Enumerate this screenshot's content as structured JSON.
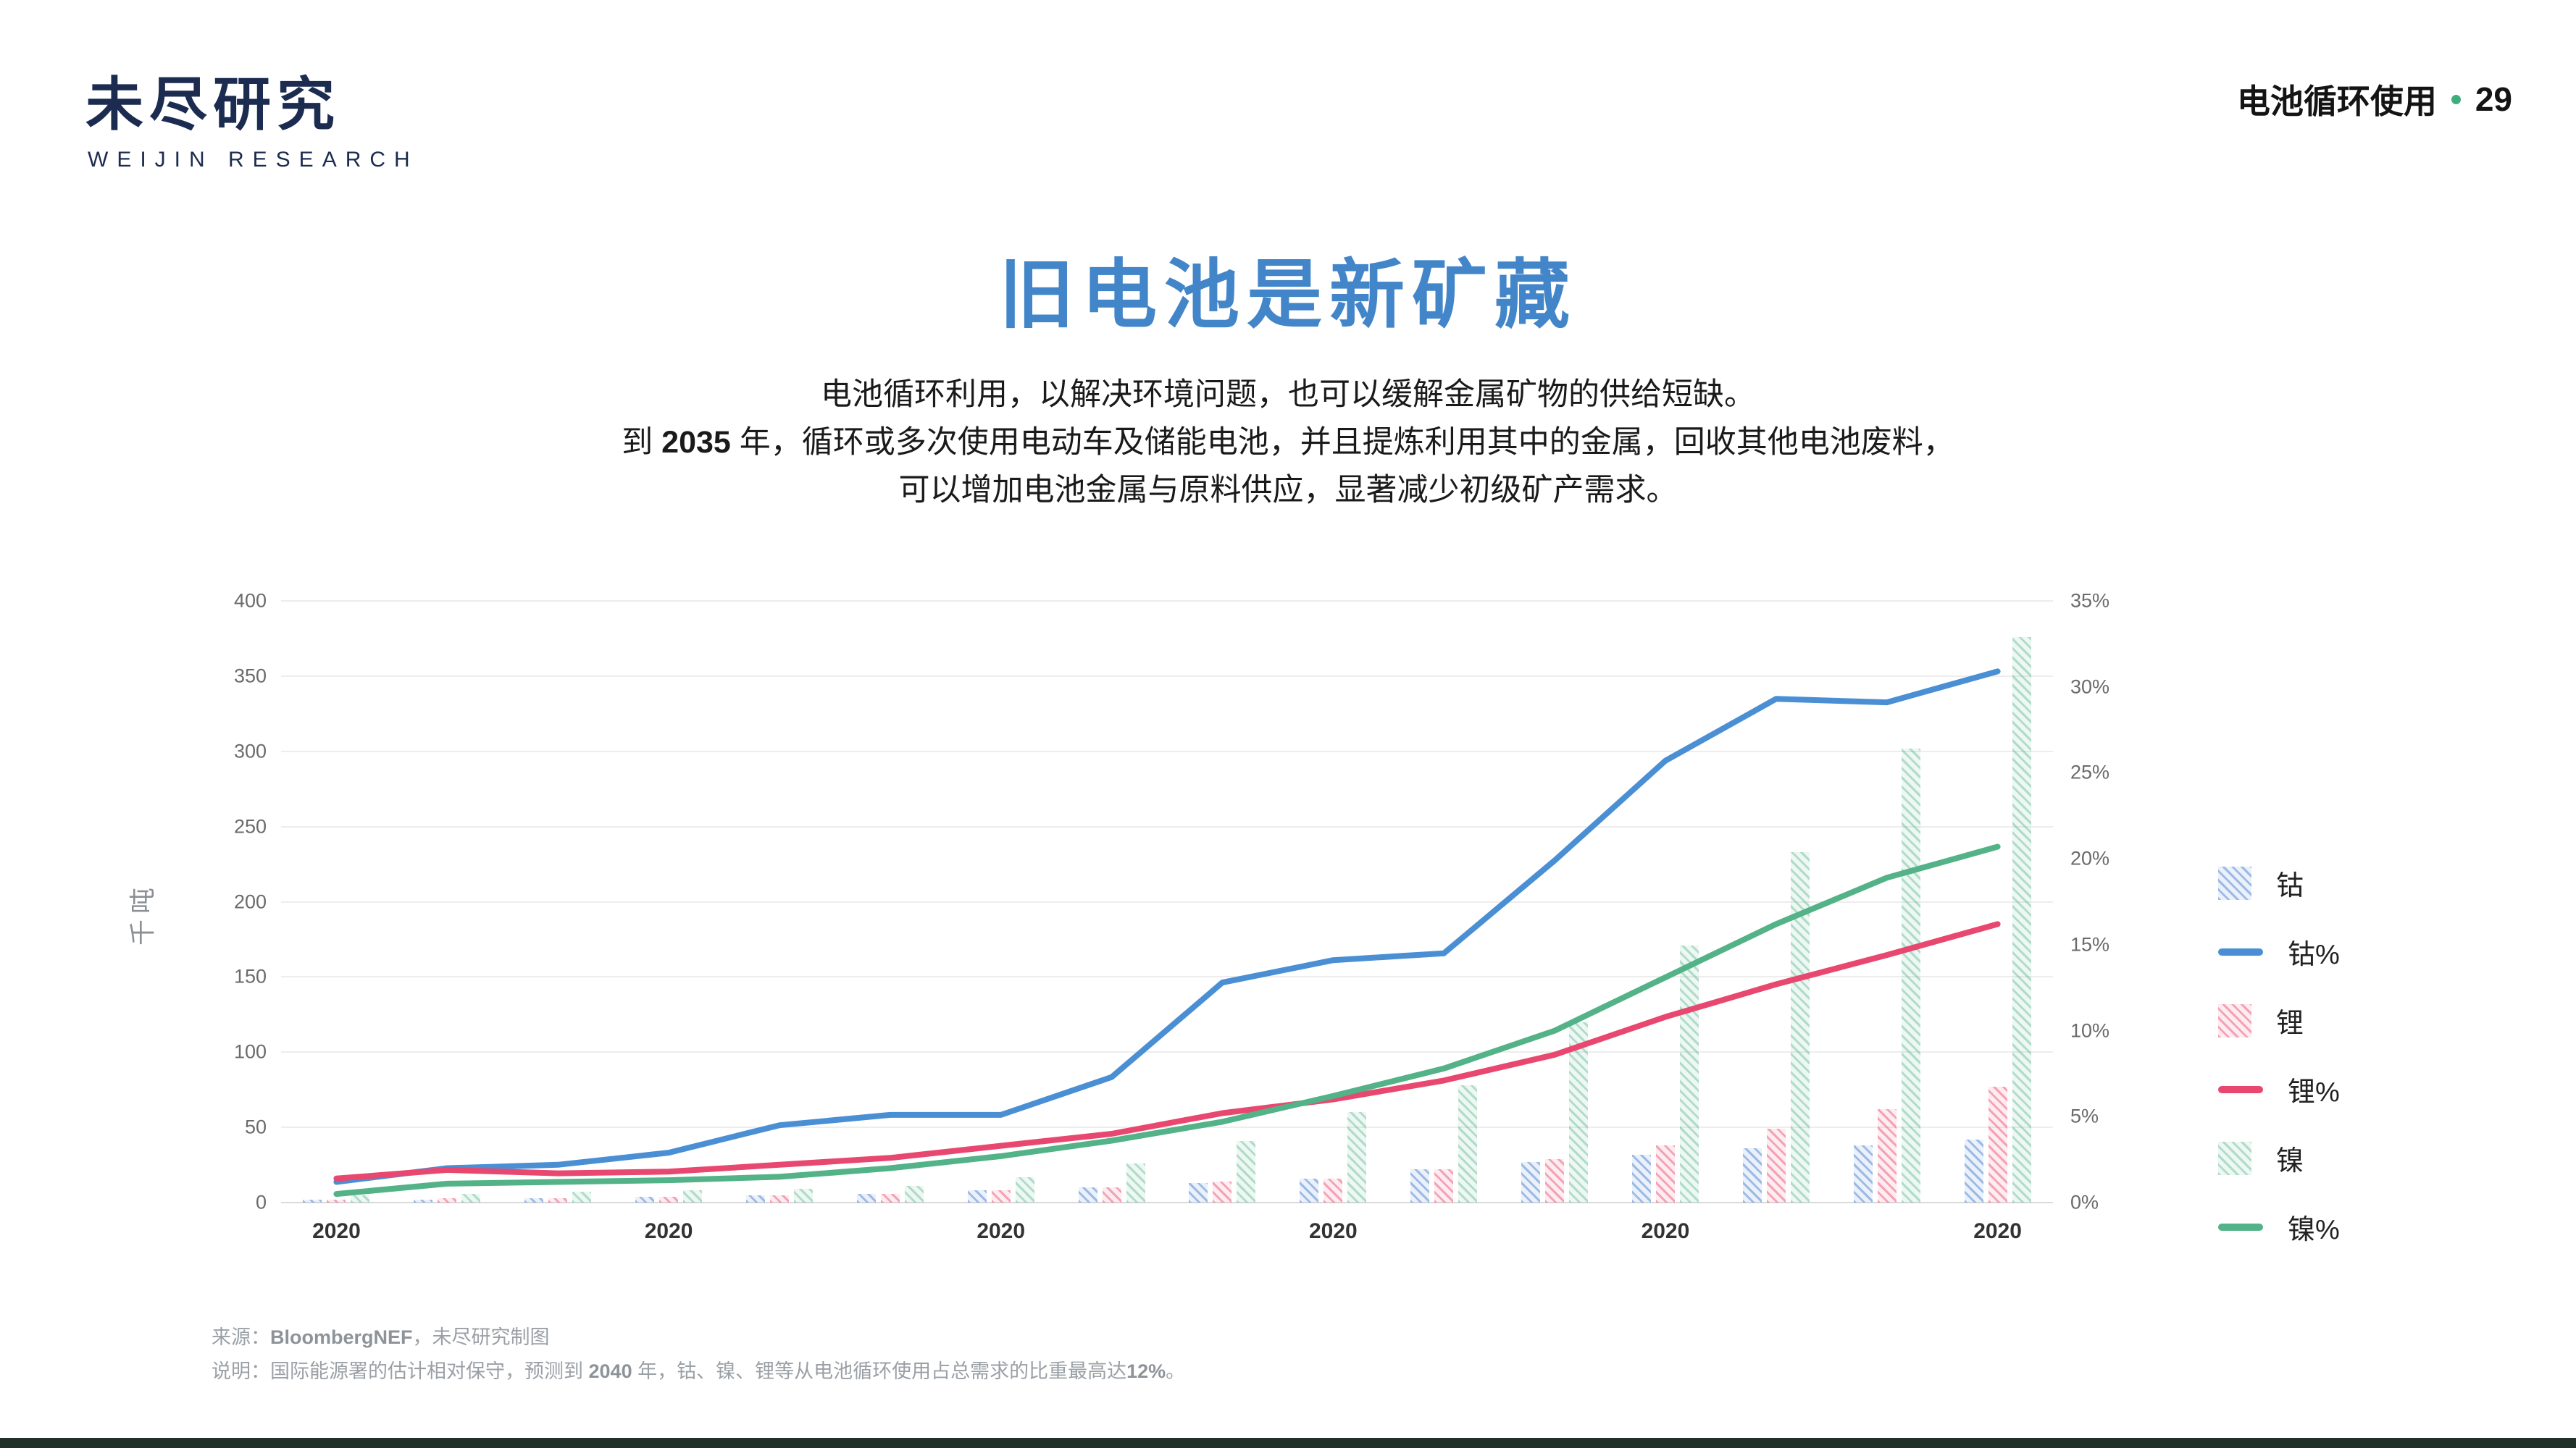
{
  "page": {
    "bg": "#ffffff",
    "bottom_bar_color": "#22302a"
  },
  "header": {
    "logo_cn": "未尽研究",
    "logo_en": "WEIJIN RESEARCH",
    "section_label": "电池循环使用",
    "page_number": "29",
    "accent_green": "#3fae7a",
    "logo_color": "#1c2b50"
  },
  "title": {
    "text": "旧电池是新矿藏",
    "color": "#4285c8"
  },
  "subtitle": {
    "line1": "电池循环利用，以解决环境问题，也可以缓解金属矿物的供给短缺。",
    "line2_pre": "到 ",
    "line2_bold": "2035",
    "line2_post": " 年，循环或多次使用电动车及储能电池，并且提炼利用其中的金属，回收其他电池废料，",
    "line3": "可以增加电池金属与原料供应，显著减少初级矿产需求。"
  },
  "chart_data": {
    "type": "combo-bar-line",
    "title": "",
    "categories_count": 16,
    "x_labels": [
      "2020",
      "2020",
      "2020",
      "2020",
      "2020",
      "2020"
    ],
    "x_label_positions": [
      0,
      3,
      6,
      9,
      12,
      15
    ],
    "left_axis": {
      "label": "千吨",
      "min": 0,
      "max": 400,
      "step": 50
    },
    "right_axis": {
      "min": 0,
      "max": 35,
      "step": 5,
      "suffix": "%"
    },
    "grid": "horizontal",
    "legend_position": "right",
    "bar_series": [
      {
        "key": "cobalt",
        "name": "钴",
        "color": "#5b8cd3",
        "values": [
          2,
          2,
          3,
          4,
          5,
          6,
          8,
          10,
          13,
          16,
          22,
          27,
          32,
          36,
          38,
          42
        ]
      },
      {
        "key": "lithium",
        "name": "锂",
        "color": "#e8486f",
        "values": [
          2,
          3,
          3,
          4,
          5,
          6,
          8,
          10,
          14,
          16,
          22,
          29,
          38,
          49,
          62,
          77
        ]
      },
      {
        "key": "nickel",
        "name": "镍",
        "color": "#53b287",
        "values": [
          5,
          6,
          7,
          8,
          9,
          11,
          17,
          26,
          41,
          60,
          78,
          120,
          171,
          233,
          302,
          376
        ]
      }
    ],
    "line_series": [
      {
        "key": "cobalt-pct",
        "name": "钴%",
        "color": "#4a8fd4",
        "values": [
          1.2,
          2.0,
          2.2,
          2.9,
          4.5,
          5.1,
          5.1,
          7.3,
          12.8,
          14.1,
          14.5,
          19.9,
          25.7,
          29.3,
          29.1,
          30.9
        ]
      },
      {
        "key": "lithium-pct",
        "name": "锂%",
        "color": "#e8486f",
        "values": [
          1.4,
          1.9,
          1.7,
          1.8,
          2.2,
          2.6,
          3.3,
          4.0,
          5.2,
          6.0,
          7.1,
          8.6,
          10.8,
          12.7,
          14.4,
          16.2
        ]
      },
      {
        "key": "nickel-pct",
        "name": "镍%",
        "color": "#53b287",
        "values": [
          0.5,
          1.1,
          1.2,
          1.3,
          1.5,
          2.0,
          2.7,
          3.6,
          4.7,
          6.2,
          7.8,
          10.0,
          13.1,
          16.2,
          18.9,
          20.7
        ]
      }
    ]
  },
  "legend": {
    "items": [
      {
        "key": "cobalt",
        "label": "钴",
        "type": "bar",
        "cls": "cobalt",
        "color": "#5b8cd3"
      },
      {
        "key": "cobalt-pct",
        "label": "钴%",
        "type": "line",
        "color": "#4a8fd4"
      },
      {
        "key": "lithium",
        "label": "锂",
        "type": "bar",
        "cls": "lithium",
        "color": "#e8486f"
      },
      {
        "key": "lithium-pct",
        "label": "锂%",
        "type": "line",
        "color": "#e8486f"
      },
      {
        "key": "nickel",
        "label": "镍",
        "type": "bar",
        "cls": "nickel",
        "color": "#53b287"
      },
      {
        "key": "nickel-pct",
        "label": "镍%",
        "type": "line",
        "color": "#53b287"
      }
    ]
  },
  "footer": {
    "source_pre": "来源：",
    "source_bold": "BloombergNEF",
    "source_post": "，未尽研究制图",
    "note_pre": "说明：国际能源署的估计相对保守，预测到 ",
    "note_bold1": "2040",
    "note_mid": " 年，钴、镍、锂等从电池循环使用占总需求的比重最高达",
    "note_bold2": "12%",
    "note_end": "。"
  }
}
